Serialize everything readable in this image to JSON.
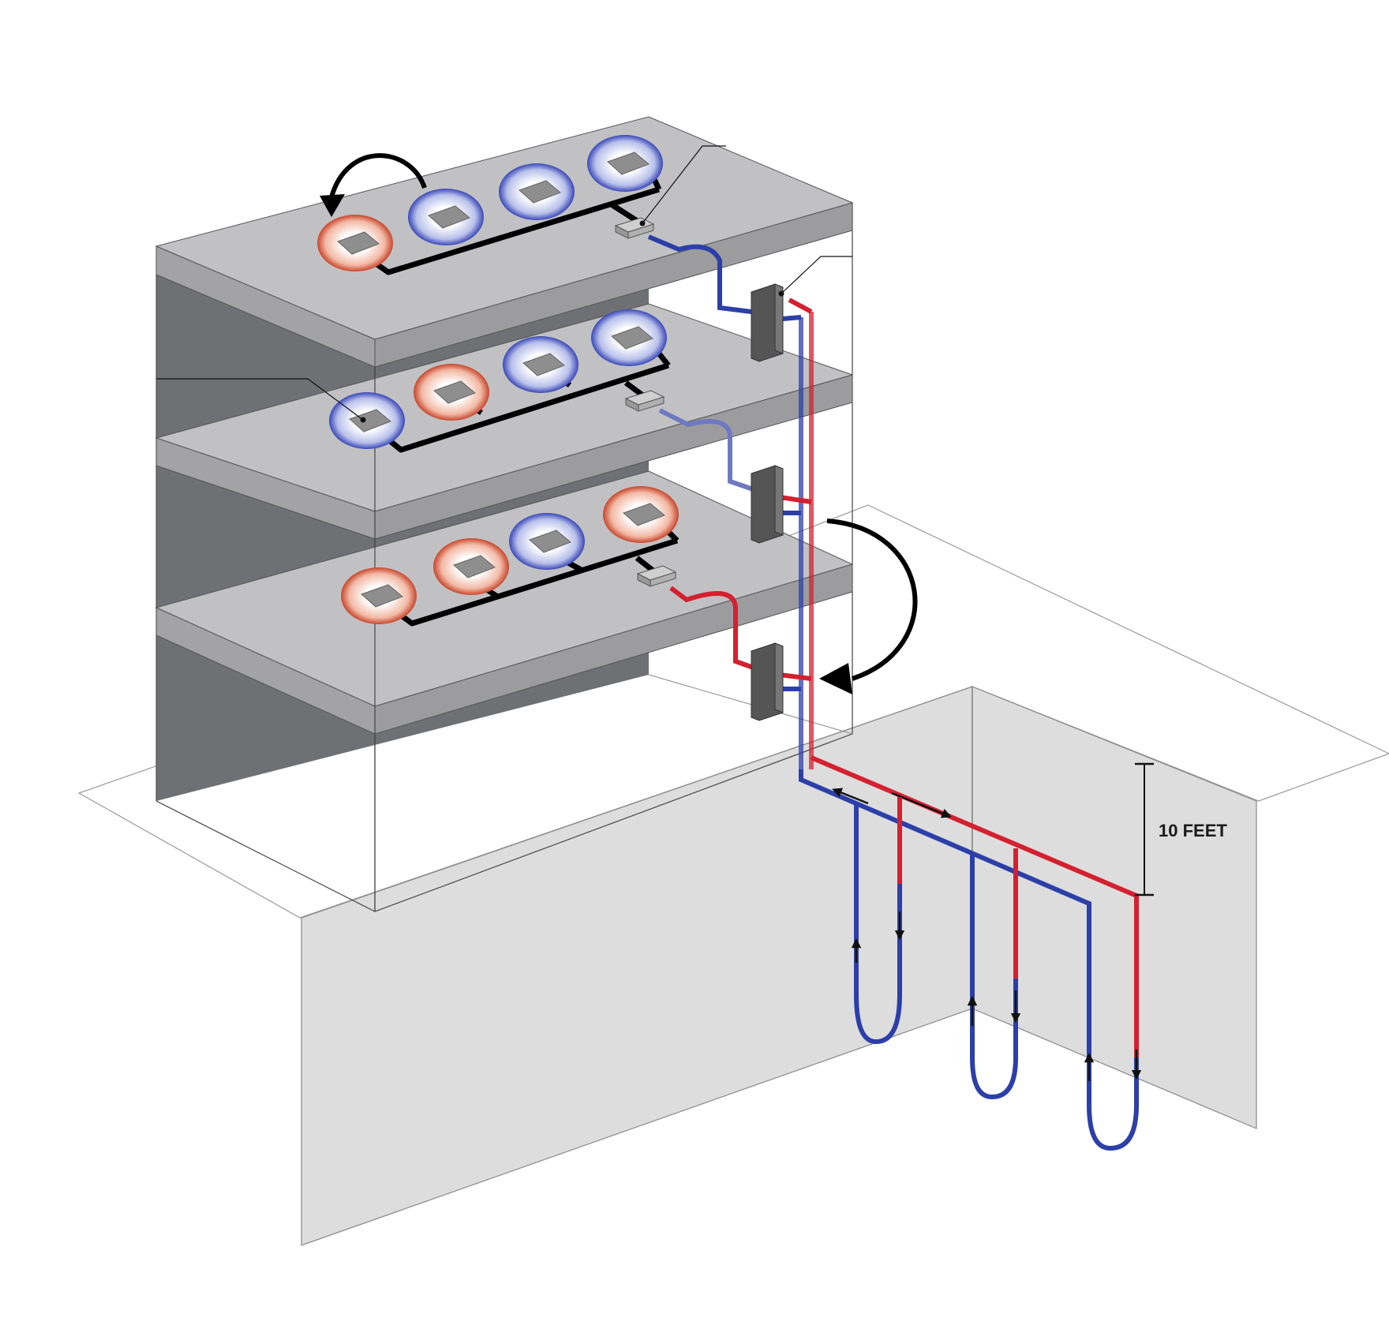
{
  "diagram": {
    "dimension_label": "10 FEET",
    "colors": {
      "warm": "#d4202f",
      "cool": "#2c3fa8",
      "slab": "#bcbcbe",
      "wall_dark": "#6e6f73",
      "ground": "#dcdcdc",
      "thermal_unit": "#8a8a8a",
      "heat_exchanger": "#555555"
    },
    "floors": [
      {
        "name": "floor-3",
        "zones": [
          "warm",
          "cool",
          "cool",
          "cool"
        ]
      },
      {
        "name": "floor-2",
        "zones": [
          "cool",
          "warm",
          "cool",
          "cool"
        ]
      },
      {
        "name": "floor-1",
        "zones": [
          "warm",
          "warm",
          "cool",
          "warm"
        ]
      }
    ],
    "ground_loops": 3,
    "icons": [
      "curved-arrow-icon",
      "flow-arrow-icon"
    ]
  }
}
